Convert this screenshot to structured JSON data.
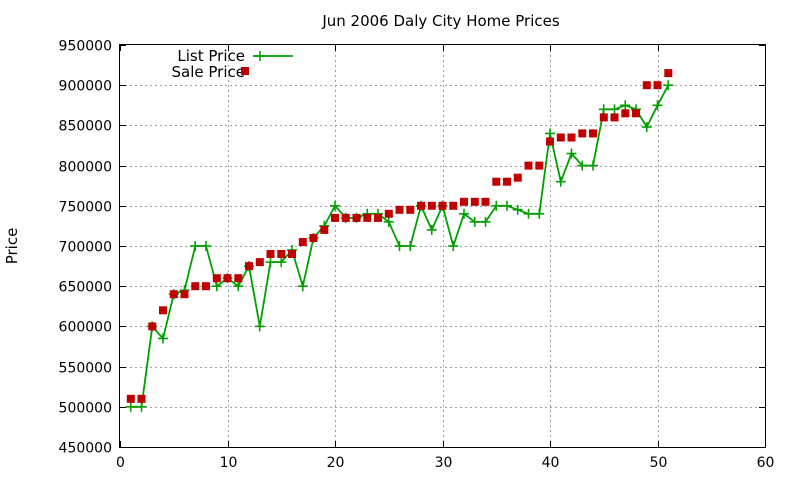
{
  "chart_data": {
    "type": "line",
    "title": "Jun 2006 Daly City Home Prices",
    "xlabel": "",
    "ylabel": "Price",
    "xlim": [
      0,
      60
    ],
    "ylim": [
      450000,
      950000
    ],
    "x_ticks": [
      "0",
      "10",
      "20",
      "30",
      "40",
      "50",
      "60"
    ],
    "y_ticks": [
      "450000",
      "500000",
      "550000",
      "600000",
      "650000",
      "700000",
      "750000",
      "800000",
      "850000",
      "900000",
      "950000"
    ],
    "grid": true,
    "legend_position": "top-left",
    "series": [
      {
        "name": "List Price",
        "style": "lines+crosses",
        "color": "#00a000",
        "x": [
          1,
          2,
          3,
          4,
          5,
          6,
          7,
          8,
          9,
          10,
          11,
          12,
          13,
          14,
          15,
          16,
          17,
          18,
          19,
          20,
          21,
          22,
          23,
          24,
          25,
          26,
          27,
          28,
          29,
          30,
          31,
          32,
          33,
          34,
          35,
          36,
          37,
          38,
          39,
          40,
          41,
          42,
          43,
          44,
          45,
          46,
          47,
          48,
          49,
          50,
          51
        ],
        "values": [
          500000,
          500000,
          600000,
          585000,
          640000,
          645000,
          700000,
          700000,
          650000,
          660000,
          650000,
          675000,
          600000,
          680000,
          680000,
          695000,
          650000,
          710000,
          725000,
          750000,
          735000,
          735000,
          740000,
          740000,
          730000,
          700000,
          700000,
          750000,
          720000,
          750000,
          700000,
          740000,
          730000,
          730000,
          750000,
          750000,
          745000,
          740000,
          740000,
          840000,
          780000,
          815000,
          800000,
          800000,
          870000,
          870000,
          875000,
          870000,
          848000,
          875000,
          900000
        ]
      },
      {
        "name": "Sale Price",
        "style": "squares",
        "color": "#c00000",
        "x": [
          1,
          2,
          3,
          4,
          5,
          6,
          7,
          8,
          9,
          10,
          11,
          12,
          13,
          14,
          15,
          16,
          17,
          18,
          19,
          20,
          21,
          22,
          23,
          24,
          25,
          26,
          27,
          28,
          29,
          30,
          31,
          32,
          33,
          34,
          35,
          36,
          37,
          38,
          39,
          40,
          41,
          42,
          43,
          44,
          45,
          46,
          47,
          48,
          49,
          50,
          51
        ],
        "values": [
          510000,
          510000,
          600000,
          620000,
          640000,
          640000,
          650000,
          650000,
          660000,
          660000,
          660000,
          675000,
          680000,
          690000,
          690000,
          690000,
          705000,
          710000,
          720000,
          735000,
          735000,
          735000,
          735000,
          735000,
          740000,
          745000,
          745000,
          750000,
          750000,
          750000,
          750000,
          755000,
          755000,
          755000,
          780000,
          780000,
          785000,
          800000,
          800000,
          830000,
          835000,
          835000,
          840000,
          840000,
          860000,
          860000,
          865000,
          865000,
          900000,
          900000,
          915000
        ]
      }
    ]
  }
}
